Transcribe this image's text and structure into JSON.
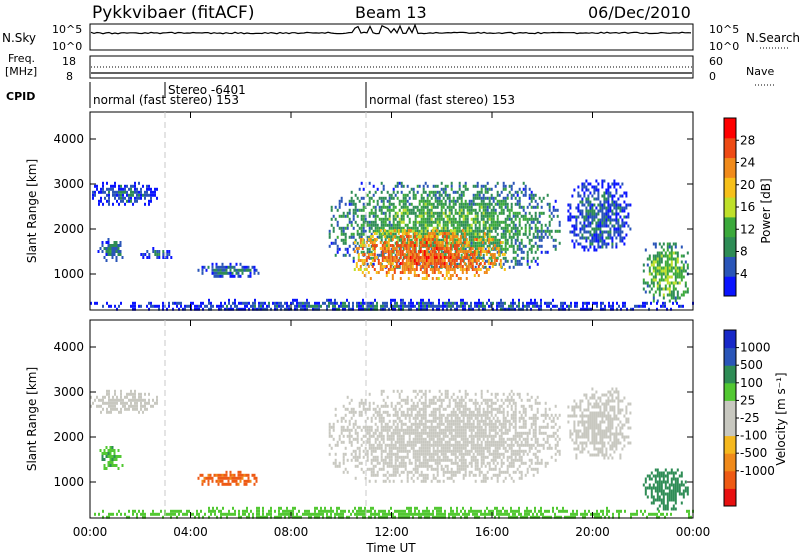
{
  "header": {
    "station": "Pykkvibaer (fitACF)",
    "beam": "Beam 13",
    "date": "06/Dec/2010"
  },
  "noise_panel": {
    "left_label": "N.Sky",
    "right_label": "N.Search",
    "left_ticks": [
      "10^5",
      "10^0"
    ],
    "right_ticks": [
      "10^5",
      "10^0"
    ]
  },
  "freq_panel": {
    "left_label_top": "Freq.",
    "left_label_bottom": "[MHz]",
    "right_label": "Nave",
    "left_ticks": [
      "18",
      "8"
    ],
    "right_ticks": [
      "60",
      "0"
    ]
  },
  "cpid_panel": {
    "label": "CPID",
    "entries": [
      {
        "text": "normal (fast stereo) 153",
        "start_hour": 0
      },
      {
        "text": "Stereo -6401",
        "start_hour": 3
      },
      {
        "text": "normal (fast stereo) 153",
        "start_hour": 11
      }
    ]
  },
  "colors": {
    "power": [
      "#0a14ff",
      "#2a55b8",
      "#2e8c55",
      "#3ba93b",
      "#bfe02a",
      "#f6c01a",
      "#f08a1a",
      "#ee4a14",
      "#ff0000"
    ],
    "velocity": [
      "#e81010",
      "#ee5a14",
      "#f08a1a",
      "#f5b81e",
      "#c8c8c0",
      "#c8c8c0",
      "#52c832",
      "#2e8c55",
      "#2a55b8",
      "#1828c8"
    ]
  },
  "chart_data": [
    {
      "type": "heatmap",
      "name": "power",
      "ylabel": "Slant Range [km]",
      "ylim": [
        200,
        4600
      ],
      "yticks": [
        1000,
        2000,
        3000,
        4000
      ],
      "xlim": [
        0,
        24
      ],
      "colorbar": {
        "label": "Power [dB]",
        "ticks": [
          4,
          8,
          12,
          16,
          20,
          24,
          28
        ],
        "range": [
          0,
          32
        ]
      },
      "regions": [
        {
          "t0": 0.0,
          "t1": 2.7,
          "r0": 2550,
          "r1": 3050,
          "value": 6
        },
        {
          "t0": 0.3,
          "t1": 1.3,
          "r0": 1300,
          "r1": 1800,
          "value": 8
        },
        {
          "t0": 2.0,
          "t1": 3.3,
          "r0": 1350,
          "r1": 1600,
          "value": 6
        },
        {
          "t0": 4.2,
          "t1": 6.7,
          "r0": 950,
          "r1": 1250,
          "value": 8
        },
        {
          "t0": 9.5,
          "t1": 18.7,
          "r0": 1150,
          "r1": 3050,
          "value": 12
        },
        {
          "t0": 10.5,
          "t1": 16.5,
          "r0": 900,
          "r1": 2000,
          "value": 26
        },
        {
          "t0": 19.0,
          "t1": 21.5,
          "r0": 1500,
          "r1": 3100,
          "value": 7
        },
        {
          "t0": 22.0,
          "t1": 23.8,
          "r0": 400,
          "r1": 1700,
          "value": 14
        },
        {
          "t0": 0.0,
          "t1": 24.0,
          "r0": 200,
          "r1": 450,
          "value": 6
        }
      ]
    },
    {
      "type": "heatmap",
      "name": "velocity",
      "ylabel": "Slant Range [km]",
      "xlabel": "Time UT",
      "ylim": [
        200,
        4600
      ],
      "yticks": [
        1000,
        2000,
        3000,
        4000
      ],
      "xlim": [
        0,
        24
      ],
      "xtick_labels": [
        "00:00",
        "04:00",
        "08:00",
        "12:00",
        "16:00",
        "20:00",
        "00:00"
      ],
      "colorbar": {
        "label": "Velocity [m s⁻¹]",
        "ticks": [
          1000,
          500,
          100,
          25,
          -25,
          -100,
          -500,
          -1000
        ]
      },
      "regions": [
        {
          "t0": 0.0,
          "t1": 2.7,
          "r0": 2550,
          "r1": 3050,
          "value": 0
        },
        {
          "t0": 0.3,
          "t1": 1.3,
          "r0": 1300,
          "r1": 1800,
          "value": 80
        },
        {
          "t0": 4.2,
          "t1": 6.7,
          "r0": 950,
          "r1": 1250,
          "value": -150
        },
        {
          "t0": 9.5,
          "t1": 18.7,
          "r0": 1000,
          "r1": 3050,
          "value": 0
        },
        {
          "t0": 19.0,
          "t1": 21.5,
          "r0": 1500,
          "r1": 3100,
          "value": 0
        },
        {
          "t0": 22.0,
          "t1": 23.8,
          "r0": 400,
          "r1": 1300,
          "value": 300
        },
        {
          "t0": 0.0,
          "t1": 24.0,
          "r0": 200,
          "r1": 450,
          "value": 60
        }
      ]
    }
  ]
}
